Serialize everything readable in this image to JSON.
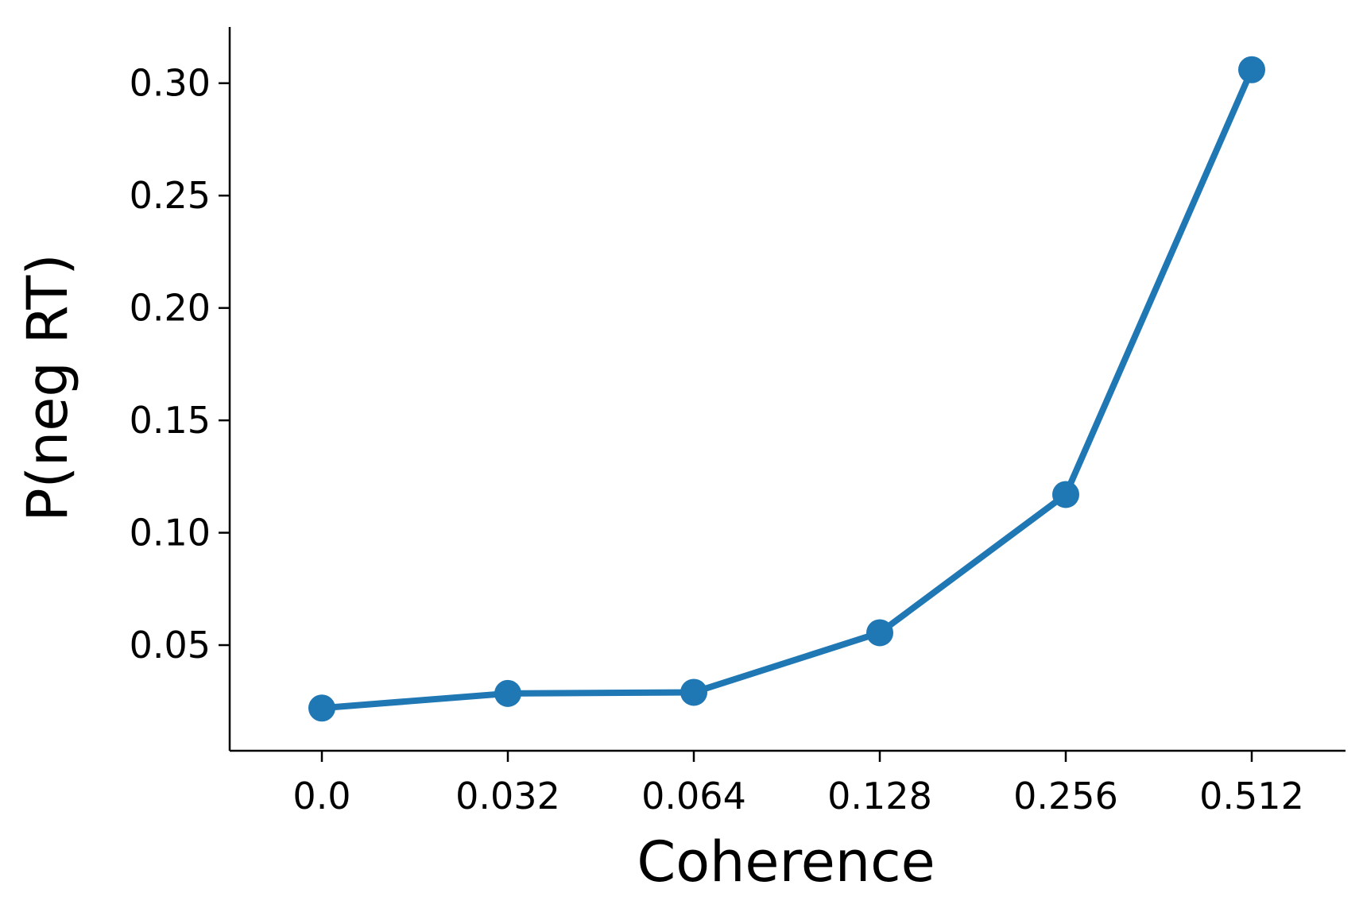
{
  "chart_data": {
    "type": "line",
    "title": "",
    "xlabel": "Coherence",
    "ylabel": "P(neg RT)",
    "categories": [
      "0.0",
      "0.032",
      "0.064",
      "0.128",
      "0.256",
      "0.512"
    ],
    "series": [
      {
        "values": [
          0.022,
          0.0285,
          0.029,
          0.0555,
          0.117,
          0.306
        ]
      }
    ],
    "ylim": [
      0.003,
      0.325
    ],
    "yticks": [
      0.05,
      0.1,
      0.15,
      0.2,
      0.25,
      0.3
    ],
    "ytick_labels": [
      "0.05",
      "0.10",
      "0.15",
      "0.20",
      "0.25",
      "0.30"
    ],
    "grid": false,
    "legend": "none",
    "marker": "circle",
    "colors": {
      "series": "#1f77b4",
      "axis": "#000000"
    }
  }
}
